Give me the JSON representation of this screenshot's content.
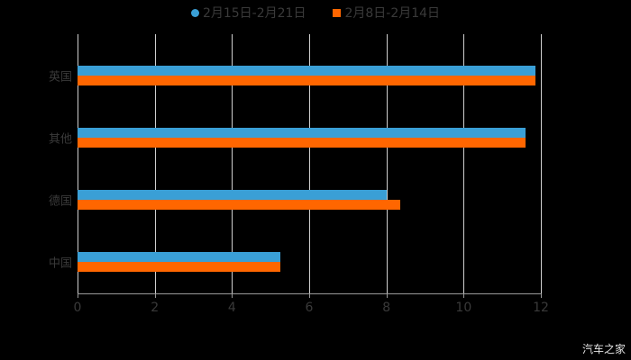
{
  "chart_data": {
    "type": "bar",
    "orientation": "horizontal",
    "title": "",
    "xlabel": "",
    "ylabel": "",
    "categories": [
      "英国",
      "其他",
      "德国",
      "中国"
    ],
    "series": [
      {
        "name": "2月15日-2月21日",
        "color": "#3a9fd6",
        "values": [
          11.85,
          11.6,
          8.0,
          5.25
        ]
      },
      {
        "name": "2月8日-2月14日",
        "color": "#ff6600",
        "values": [
          11.85,
          11.6,
          8.35,
          5.25
        ]
      }
    ],
    "xlim": [
      0,
      12
    ],
    "xticks": [
      "0",
      "2",
      "4",
      "6",
      "8",
      "10",
      "12"
    ],
    "grid": true,
    "legend_position": "top"
  },
  "legend": {
    "items": [
      {
        "label": "2月15日-2月21日",
        "color": "#3a9fd6",
        "marker": "circle"
      },
      {
        "label": "2月8日-2月14日",
        "color": "#ff6600",
        "marker": "square"
      }
    ]
  },
  "watermark": "汽车之家"
}
